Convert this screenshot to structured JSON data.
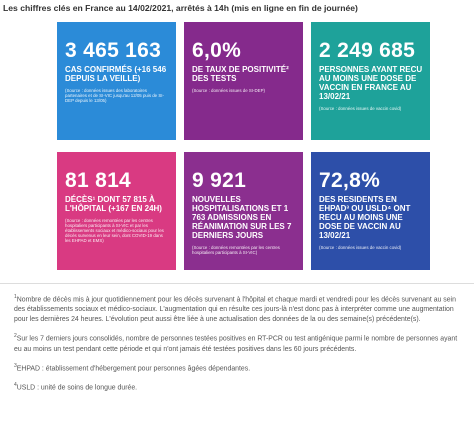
{
  "header": {
    "title": "Les chiffres clés en France au 14/02/2021, arrêtés à 14h (mis en ligne en fin de journée)"
  },
  "tiles": [
    {
      "figure": "3 465 163",
      "label": "CAS CONFIRMÉS (+16 546 DEPUIS LA VEILLE)",
      "source": "(Source : données issues des laboratoires partenaires et de SI-VIC jusqu'au 12/05 puis de SI-DEP depuis le 13/05)"
    },
    {
      "figure": "6,0%",
      "label": "DE TAUX DE POSITIVITÉ² DES TESTS",
      "source": "(Source : données issues de SI-DEP)"
    },
    {
      "figure": "2 249 685",
      "label": "PERSONNES AYANT RECU AU MOINS UNE DOSE DE VACCIN EN FRANCE AU 13/02/21",
      "source": "(Source : données issues de vaccin covid)"
    },
    {
      "figure": "81 814",
      "label": "DÉCÈS¹ DONT 57 815 À L'HÔPITAL (+167 EN 24H)",
      "source": "(Source : données remontées par les centres hospitaliers participants à SI-VIC et par les établissements sociaux et médico-sociaux pour les décès survenus en leur sein, dont COVID-19 dans les EHPAD et EMS)"
    },
    {
      "figure": "9 921",
      "label": "NOUVELLES HOSPITALISATIONS ET 1 763 ADMISSIONS EN RÉANIMATION SUR LES 7 DERNIERS JOURS",
      "source": "(Source : données remontées par les centres hospitaliers participants à SI-VIC)"
    },
    {
      "figure": "72,8%",
      "label": "DES RESIDENTS EN EHPAD³ OU USLD⁴ ONT RECU AU MOINS UNE DOSE DE VACCIN AU 13/02/21",
      "source": "(Source : données issues de vaccin covid)"
    }
  ],
  "footnotes": [
    {
      "marker": "1",
      "text": "Nombre de décès mis à jour quotidiennement pour les décès survenant à l'hôpital et chaque mardi et vendredi pour les décès survenant au sein des établissements sociaux et médico-sociaux. L'augmentation qui en résulte ces jours-là n'est donc pas à interpréter comme une augmentation pour les dernières 24 heures. L'évolution peut aussi être liée à une actualisation des données de la ou des semaine(s) précédente(s)."
    },
    {
      "marker": "2",
      "text": "Sur les 7 derniers jours consolidés, nombre de personnes testées positives en RT-PCR ou test antigénique parmi le nombre de personnes ayant eu au moins un test pendant cette période et qui n'ont jamais été testées positives dans les 60 jours précédents."
    },
    {
      "marker": "3",
      "text": "EHPAD : établissement d'hébergement pour personnes âgées dépendantes."
    },
    {
      "marker": "4",
      "text": "USLD : unité de soins de longue durée."
    }
  ]
}
